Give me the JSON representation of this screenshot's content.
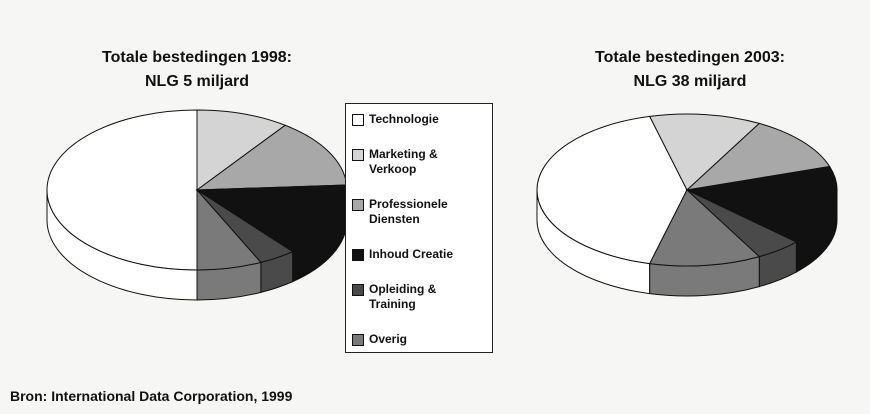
{
  "chart_data": [
    {
      "type": "pie",
      "title": "Totale bestedingen 1998:",
      "subtitle": "NLG 5 miljard",
      "values": [
        50,
        10,
        14,
        15,
        4,
        7
      ]
    },
    {
      "type": "pie",
      "title": "Totale bestedingen 2003:",
      "subtitle": "NLG 38 miljard",
      "values": [
        42,
        12,
        12,
        17,
        5,
        12
      ]
    }
  ],
  "legend": {
    "items": [
      {
        "name": "Technologie",
        "color": "#ffffff"
      },
      {
        "name": "Marketing & Verkoop",
        "color": "#d4d4d4"
      },
      {
        "name": "Professionele Diensten",
        "color": "#a8a8a8"
      },
      {
        "name": "Inhoud Creatie",
        "color": "#111111"
      },
      {
        "name": "Opleiding & Training",
        "color": "#4a4a4a"
      },
      {
        "name": "Overig",
        "color": "#7a7a7a"
      }
    ]
  },
  "source": "Bron: International Data Corporation, 1999"
}
